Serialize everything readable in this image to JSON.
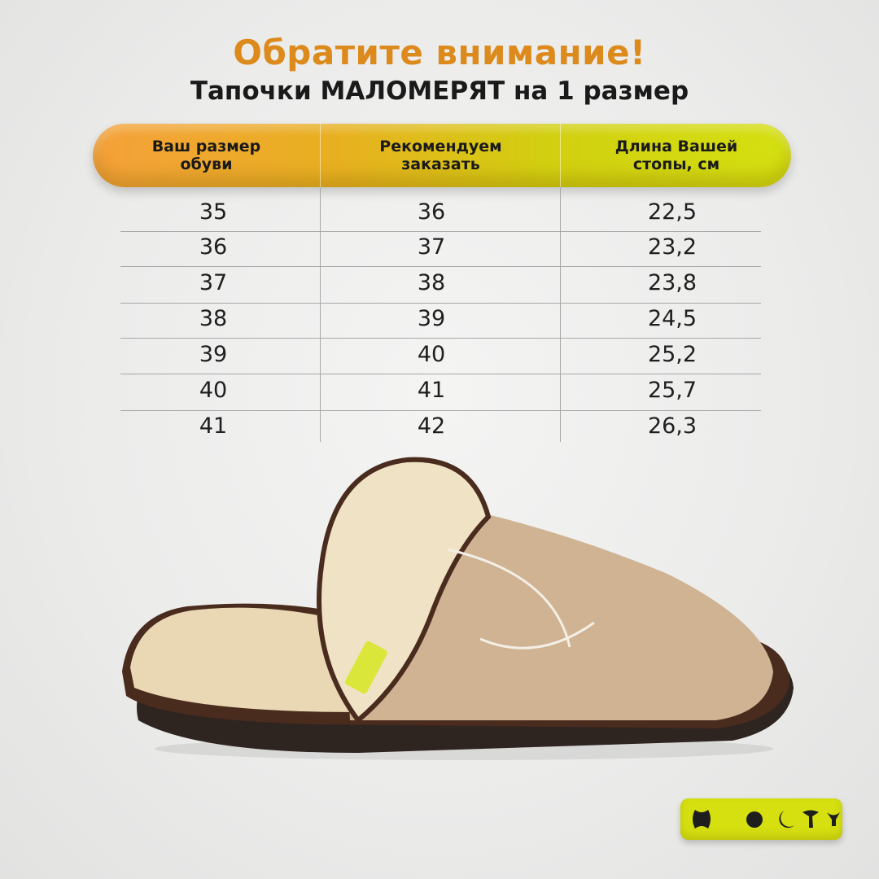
{
  "heading": {
    "title": "Обратите внимание!",
    "subtitle": "Тапочки МАЛОМЕРЯТ на 1 размер"
  },
  "table": {
    "columns": [
      "Ваш размер\nобуви",
      "Рекомендуем\nзаказать",
      "Длина Вашей\nстопы, см"
    ],
    "rows": [
      [
        "35",
        "36",
        "22,5"
      ],
      [
        "36",
        "37",
        "23,2"
      ],
      [
        "37",
        "38",
        "23,8"
      ],
      [
        "38",
        "39",
        "24,5"
      ],
      [
        "39",
        "40",
        "25,2"
      ],
      [
        "40",
        "41",
        "25,7"
      ],
      [
        "41",
        "42",
        "26,3"
      ]
    ]
  },
  "colors": {
    "title": "#dc8a1c",
    "header_start": "#f5a13a",
    "header_end": "#d4e010",
    "logo_bg": "#d6e010"
  },
  "icons": [
    "brand-logo-icon",
    "slipper-photo"
  ]
}
